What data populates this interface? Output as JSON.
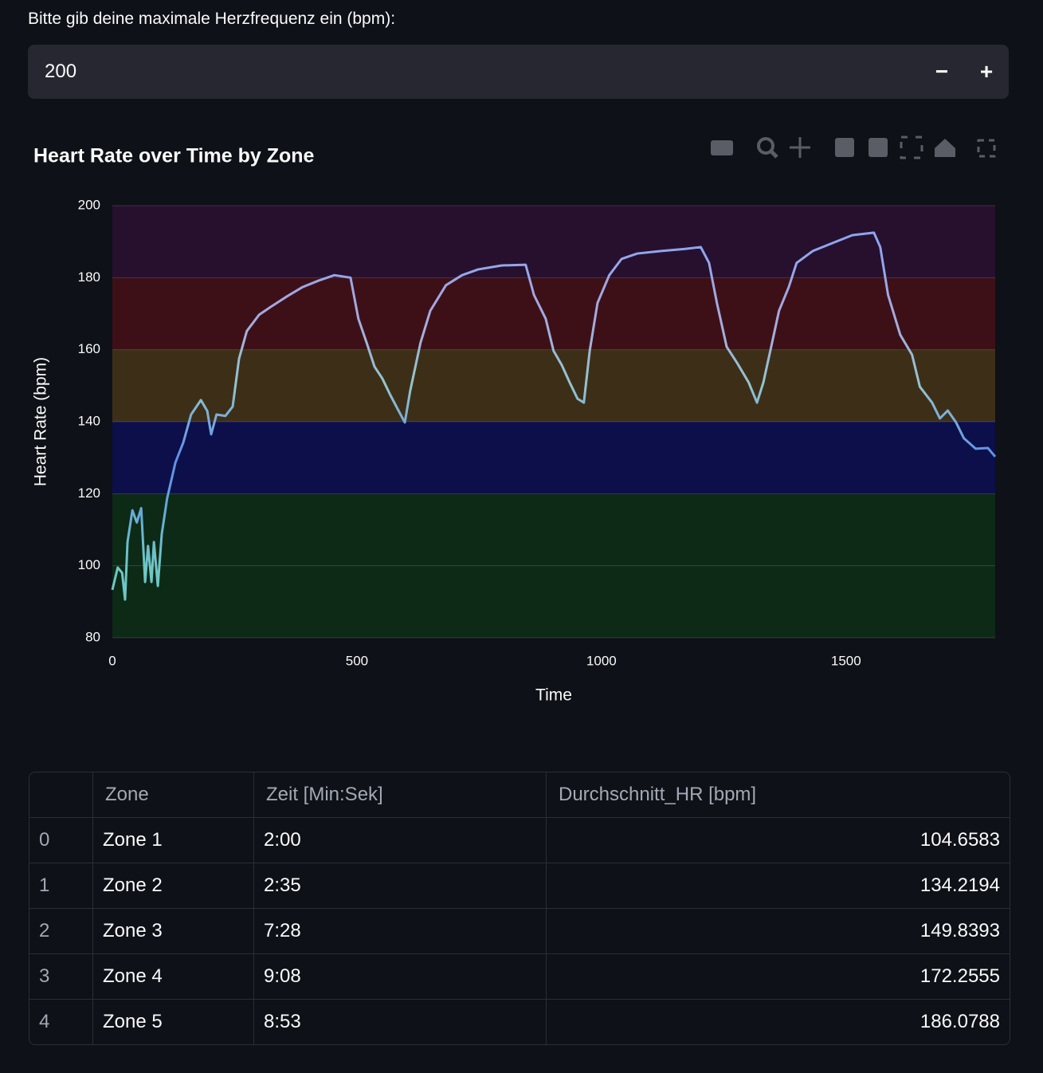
{
  "input": {
    "label": "Bitte gib deine maximale Herzfrequenz ein (bpm):",
    "value": 200,
    "decrement": "−",
    "increment": "+"
  },
  "chart_data": {
    "type": "line",
    "title": "Heart Rate over Time by Zone",
    "x_label": "Time",
    "y_label": "Heart Rate (bpm)",
    "x": [
      0,
      11,
      20,
      26,
      31,
      41,
      50,
      59,
      67,
      73,
      80,
      85,
      93,
      101,
      112,
      129,
      145,
      161,
      181,
      194,
      202,
      213,
      231,
      246,
      259,
      275,
      300,
      324,
      357,
      389,
      422,
      454,
      487,
      503,
      520,
      536,
      552,
      568,
      585,
      598,
      609,
      630,
      650,
      682,
      715,
      748,
      796,
      845,
      862,
      886,
      902,
      919,
      935,
      951,
      964,
      976,
      992,
      1016,
      1041,
      1073,
      1122,
      1171,
      1203,
      1220,
      1236,
      1256,
      1277,
      1301,
      1318,
      1331,
      1347,
      1363,
      1383,
      1399,
      1432,
      1472,
      1513,
      1557,
      1570,
      1586,
      1611,
      1635,
      1651,
      1676,
      1692,
      1708,
      1725,
      1741,
      1765,
      1790,
      1805
    ],
    "values": [
      93.3,
      99.5,
      98,
      90.6,
      106.6,
      115.4,
      112,
      116,
      95.5,
      105.5,
      95.5,
      106.6,
      94.4,
      108.8,
      118.7,
      128.7,
      134.2,
      142,
      146,
      143,
      136.5,
      142,
      141.6,
      144.2,
      157.5,
      165.2,
      169.7,
      171.9,
      174.8,
      177.4,
      179.2,
      180.7,
      180,
      168.6,
      161.9,
      155.3,
      152,
      147.5,
      143.1,
      139.8,
      148.6,
      161.9,
      170.8,
      177.9,
      180.7,
      182.3,
      183.4,
      183.6,
      175.2,
      168.6,
      159.7,
      155.7,
      150.9,
      146.4,
      145.3,
      159.7,
      173,
      180.7,
      185.2,
      186.7,
      187.4,
      188,
      188.5,
      184.1,
      173,
      160.8,
      156.4,
      150.9,
      145.3,
      150.9,
      160.8,
      170.8,
      177.4,
      184.1,
      187.4,
      189.6,
      191.8,
      192.5,
      188.5,
      175.2,
      164.1,
      158.6,
      149.7,
      145.3,
      140.9,
      143.1,
      139.8,
      135.4,
      132.5,
      132.7,
      130.3
    ],
    "xlim": [
      0,
      1805
    ],
    "ylim": [
      80,
      200
    ],
    "xticks": [
      0,
      500,
      1000,
      1500
    ],
    "yticks": [
      80,
      100,
      120,
      140,
      160,
      180,
      200
    ],
    "grid": true,
    "zones": [
      {
        "from": 80,
        "to": 120,
        "color": "#0d2a17",
        "line_color": "#6fc6c6"
      },
      {
        "from": 120,
        "to": 140,
        "color": "#0c0f4a",
        "line_color": "#5e8fe6"
      },
      {
        "from": 140,
        "to": 160,
        "color": "#3d2f17",
        "line_color": "#93c5cf"
      },
      {
        "from": 160,
        "to": 180,
        "color": "#3d1018",
        "line_color": "#a6a9de"
      },
      {
        "from": 180,
        "to": 200,
        "color": "#26102e",
        "line_color": "#8ea4ee"
      }
    ]
  },
  "table": {
    "columns": [
      "Zone",
      "Zeit [Min:Sek]",
      "Durchschnitt_HR [bpm]"
    ],
    "index": [
      0,
      1,
      2,
      3,
      4
    ],
    "rows": [
      [
        "Zone 1",
        "2:00",
        104.6583
      ],
      [
        "Zone 2",
        "2:35",
        134.2194
      ],
      [
        "Zone 3",
        "7:28",
        149.8393
      ],
      [
        "Zone 4",
        "9:08",
        172.2555
      ],
      [
        "Zone 5",
        "8:53",
        186.0788
      ]
    ]
  }
}
